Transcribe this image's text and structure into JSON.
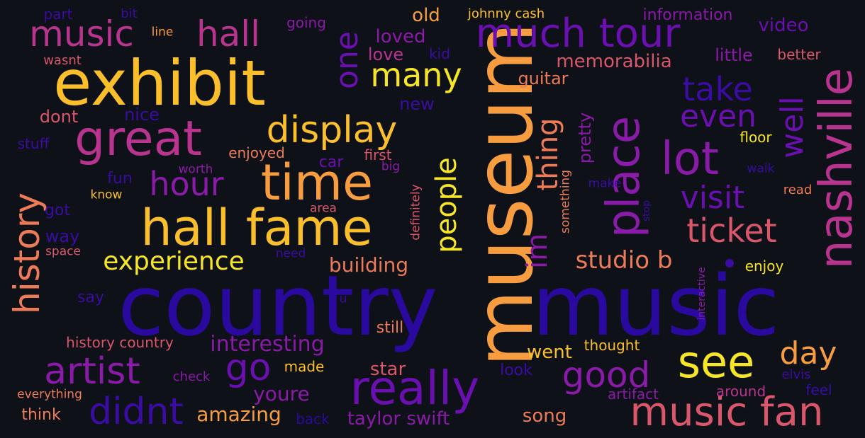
{
  "colors": {
    "background": "#0e1118",
    "deep_indigo": "#2a0a9e",
    "indigo": "#3a0ca3",
    "violet": "#6a0fb0",
    "purple": "#8a1aa8",
    "magenta": "#b8348f",
    "pink": "#d9566b",
    "salmon": "#ee7b57",
    "orange": "#f79d3f",
    "gold": "#fbbf2c",
    "yellow": "#f6e626"
  },
  "words": [
    {
      "text": "country",
      "color": "deep_indigo"
    },
    {
      "text": "music",
      "color": "deep_indigo"
    },
    {
      "text": "museum",
      "color": "orange"
    },
    {
      "text": "exhibit",
      "color": "gold"
    },
    {
      "text": "hall fame",
      "color": "gold"
    },
    {
      "text": "time",
      "color": "orange"
    },
    {
      "text": "great",
      "color": "magenta"
    },
    {
      "text": "nashville",
      "color": "magenta"
    },
    {
      "text": "place",
      "color": "purple"
    },
    {
      "text": "really",
      "color": "violet"
    },
    {
      "text": "much tour",
      "color": "violet"
    },
    {
      "text": "music fan",
      "color": "pink"
    },
    {
      "text": "see",
      "color": "yellow"
    },
    {
      "text": "lot",
      "color": "purple"
    },
    {
      "text": "display",
      "color": "gold"
    },
    {
      "text": "music",
      "color": "magenta"
    },
    {
      "text": "hall",
      "color": "magenta"
    },
    {
      "text": "history",
      "color": "salmon"
    },
    {
      "text": "artist",
      "color": "purple"
    },
    {
      "text": "ticket",
      "color": "pink"
    },
    {
      "text": "didnt",
      "color": "indigo"
    },
    {
      "text": "go",
      "color": "violet"
    },
    {
      "text": "good",
      "color": "purple"
    },
    {
      "text": "day",
      "color": "orange"
    },
    {
      "text": "many",
      "color": "yellow"
    },
    {
      "text": "hour",
      "color": "purple"
    },
    {
      "text": "visit",
      "color": "violet"
    },
    {
      "text": "people",
      "color": "yellow"
    },
    {
      "text": "one",
      "color": "violet"
    },
    {
      "text": "well",
      "color": "violet"
    },
    {
      "text": "even",
      "color": "violet"
    },
    {
      "text": "take",
      "color": "indigo"
    },
    {
      "text": "thing",
      "color": "salmon"
    },
    {
      "text": "im",
      "color": "purple"
    },
    {
      "text": "experience",
      "color": "yellow"
    },
    {
      "text": "studio b",
      "color": "salmon"
    },
    {
      "text": "interesting",
      "color": "purple"
    },
    {
      "text": "building",
      "color": "salmon"
    },
    {
      "text": "memorabilia",
      "color": "pink"
    },
    {
      "text": "youre",
      "color": "purple"
    },
    {
      "text": "amazing",
      "color": "orange"
    },
    {
      "text": "taylor swift",
      "color": "purple"
    },
    {
      "text": "went",
      "color": "gold"
    },
    {
      "text": "star",
      "color": "pink"
    },
    {
      "text": "song",
      "color": "salmon"
    },
    {
      "text": "pretty",
      "color": "purple"
    },
    {
      "text": "information",
      "color": "purple"
    },
    {
      "text": "video",
      "color": "violet"
    },
    {
      "text": "loved",
      "color": "purple"
    },
    {
      "text": "old",
      "color": "orange"
    },
    {
      "text": "love",
      "color": "magenta"
    },
    {
      "text": "guitar",
      "color": "salmon"
    },
    {
      "text": "little",
      "color": "purple"
    },
    {
      "text": "better",
      "color": "pink"
    },
    {
      "text": "johnny cash",
      "color": "gold"
    },
    {
      "text": "going",
      "color": "purple"
    },
    {
      "text": "part",
      "color": "indigo"
    },
    {
      "text": "bit",
      "color": "indigo"
    },
    {
      "text": "line",
      "color": "orange"
    },
    {
      "text": "wasnt",
      "color": "pink"
    },
    {
      "text": "kid",
      "color": "indigo"
    },
    {
      "text": "dont",
      "color": "pink"
    },
    {
      "text": "nice",
      "color": "indigo"
    },
    {
      "text": "new",
      "color": "indigo"
    },
    {
      "text": "stuff",
      "color": "indigo"
    },
    {
      "text": "enjoyed",
      "color": "salmon"
    },
    {
      "text": "first",
      "color": "pink"
    },
    {
      "text": "car",
      "color": "violet"
    },
    {
      "text": "worth",
      "color": "purple"
    },
    {
      "text": "big",
      "color": "purple"
    },
    {
      "text": "fun",
      "color": "indigo"
    },
    {
      "text": "know",
      "color": "gold"
    },
    {
      "text": "got",
      "color": "indigo"
    },
    {
      "text": "area",
      "color": "pink"
    },
    {
      "text": "way",
      "color": "indigo"
    },
    {
      "text": "space",
      "color": "pink"
    },
    {
      "text": "need",
      "color": "indigo"
    },
    {
      "text": "definitely",
      "color": "pink"
    },
    {
      "text": "something",
      "color": "salmon"
    },
    {
      "text": "make",
      "color": "indigo"
    },
    {
      "text": "stop",
      "color": "indigo"
    },
    {
      "text": "floor",
      "color": "yellow"
    },
    {
      "text": "walk",
      "color": "indigo"
    },
    {
      "text": "read",
      "color": "salmon"
    },
    {
      "text": "enjoy",
      "color": "yellow"
    },
    {
      "text": "interactive",
      "color": "purple"
    },
    {
      "text": "say",
      "color": "indigo"
    },
    {
      "text": "u",
      "color": "indigo"
    },
    {
      "text": "still",
      "color": "salmon"
    },
    {
      "text": "history country",
      "color": "pink"
    },
    {
      "text": "thought",
      "color": "gold"
    },
    {
      "text": "made",
      "color": "gold"
    },
    {
      "text": "check",
      "color": "purple"
    },
    {
      "text": "look",
      "color": "indigo"
    },
    {
      "text": "artifact",
      "color": "purple"
    },
    {
      "text": "around",
      "color": "magenta"
    },
    {
      "text": "elvis",
      "color": "indigo"
    },
    {
      "text": "feel",
      "color": "indigo"
    },
    {
      "text": "everything",
      "color": "salmon"
    },
    {
      "text": "think",
      "color": "salmon"
    },
    {
      "text": "back",
      "color": "deep_indigo"
    }
  ]
}
